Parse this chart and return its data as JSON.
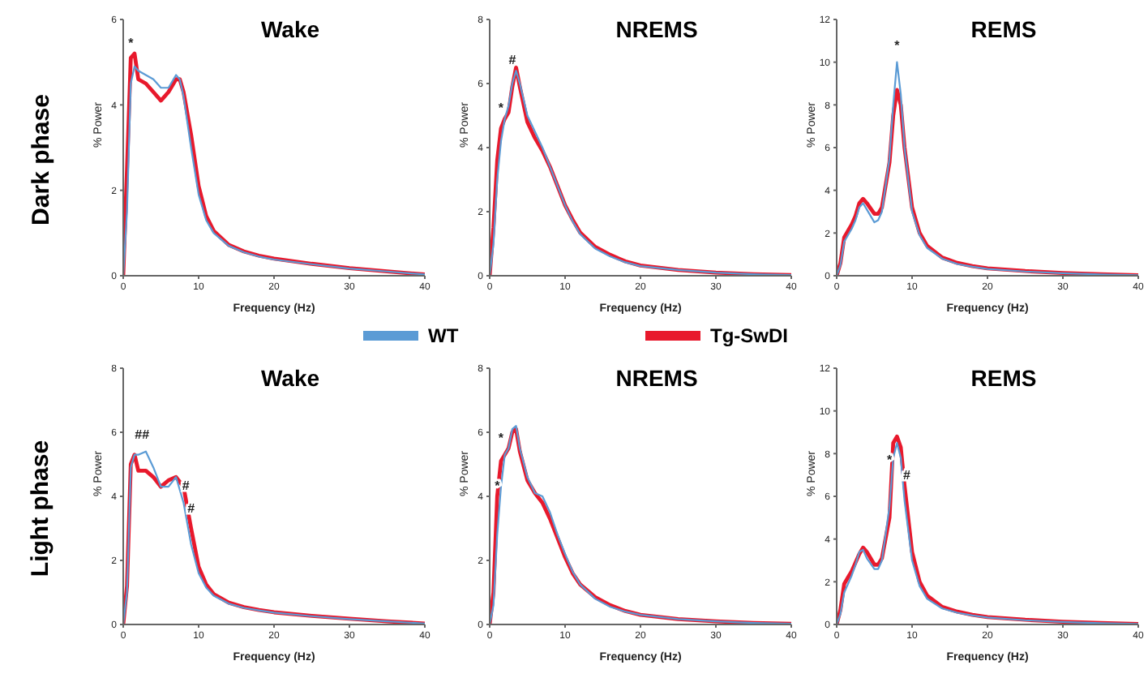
{
  "chart_data": [
    {
      "type": "line",
      "title": "Wake",
      "xlabel": "Frequency (Hz)",
      "ylabel": "% Power",
      "xlim": [
        0,
        40
      ],
      "xticks": [
        0,
        10,
        20,
        30,
        40
      ],
      "ylim": [
        0,
        6
      ],
      "yticks": [
        0,
        2,
        4,
        6
      ],
      "x": [
        0,
        0.5,
        1,
        1.5,
        2,
        3,
        4,
        5,
        6,
        7,
        7.5,
        8,
        9,
        10,
        11,
        12,
        14,
        16,
        18,
        20,
        25,
        30,
        35,
        40
      ],
      "series": [
        {
          "color": "#5b9bd5",
          "values": [
            0,
            1.5,
            4.5,
            4.9,
            4.8,
            4.7,
            4.6,
            4.4,
            4.4,
            4.7,
            4.6,
            4.2,
            3.0,
            1.9,
            1.3,
            1.0,
            0.7,
            0.55,
            0.45,
            0.38,
            0.27,
            0.17,
            0.1,
            0.03
          ]
        },
        {
          "color": "#e8192c",
          "values": [
            0,
            2.5,
            5.1,
            5.2,
            4.6,
            4.5,
            4.3,
            4.1,
            4.3,
            4.6,
            4.6,
            4.3,
            3.3,
            2.1,
            1.4,
            1.05,
            0.72,
            0.57,
            0.47,
            0.4,
            0.28,
            0.18,
            0.1,
            0.03
          ]
        }
      ],
      "annotations": [
        "Dark phase",
        {
          "text": "*",
          "x": 1,
          "y": 5.2
        }
      ]
    },
    {
      "type": "line",
      "title": "NREMS",
      "xlabel": "Frequency (Hz)",
      "ylabel": "% Power",
      "xlim": [
        0,
        40
      ],
      "xticks": [
        0,
        10,
        20,
        30,
        40
      ],
      "ylim": [
        0,
        8
      ],
      "yticks": [
        0,
        2,
        4,
        6,
        8
      ],
      "legend": "bottom",
      "x": [
        0,
        0.5,
        1,
        1.5,
        2,
        2.5,
        3,
        3.5,
        4,
        5,
        6,
        7,
        8,
        9,
        10,
        11,
        12,
        14,
        16,
        18,
        20,
        25,
        30,
        35,
        40
      ],
      "series": [
        {
          "name": "WT",
          "color": "#5b9bd5",
          "values": [
            0,
            1.0,
            3.0,
            4.2,
            4.9,
            5.3,
            6.0,
            6.4,
            6.0,
            5.0,
            4.5,
            4.0,
            3.4,
            2.8,
            2.2,
            1.7,
            1.3,
            0.85,
            0.6,
            0.42,
            0.3,
            0.18,
            0.1,
            0.05,
            0.02
          ]
        },
        {
          "name": "Tg-SwDI",
          "color": "#e8192c",
          "values": [
            0,
            1.5,
            3.6,
            4.6,
            4.9,
            5.1,
            5.9,
            6.5,
            5.9,
            4.8,
            4.3,
            3.9,
            3.4,
            2.8,
            2.2,
            1.75,
            1.35,
            0.9,
            0.65,
            0.45,
            0.32,
            0.18,
            0.1,
            0.05,
            0.02
          ]
        }
      ],
      "annotations": [
        {
          "text": "*",
          "x": 1.5,
          "y": 4.9
        },
        {
          "text": "#",
          "x": 3,
          "y": 6.4
        }
      ]
    },
    {
      "type": "line",
      "title": "REMS",
      "xlabel": "Frequency (Hz)",
      "ylabel": "% Power",
      "xlim": [
        0,
        40
      ],
      "xticks": [
        0,
        10,
        20,
        30,
        40
      ],
      "ylim": [
        0,
        12
      ],
      "yticks": [
        0,
        2,
        4,
        6,
        8,
        10,
        12
      ],
      "x": [
        0,
        0.5,
        1,
        1.5,
        2,
        2.5,
        3,
        3.5,
        4,
        5,
        5.5,
        6,
        7,
        7.5,
        8,
        8.5,
        9,
        10,
        11,
        12,
        14,
        16,
        18,
        20,
        25,
        30,
        35,
        40
      ],
      "series": [
        {
          "color": "#5b9bd5",
          "values": [
            0,
            0.5,
            1.6,
            1.9,
            2.2,
            2.6,
            3.2,
            3.4,
            3.1,
            2.5,
            2.6,
            3.0,
            5.5,
            8.0,
            10.0,
            8.5,
            6.0,
            3.0,
            1.9,
            1.3,
            0.8,
            0.55,
            0.42,
            0.32,
            0.2,
            0.12,
            0.06,
            0.02
          ]
        },
        {
          "color": "#e8192c",
          "values": [
            0,
            0.6,
            1.8,
            2.1,
            2.4,
            2.8,
            3.4,
            3.6,
            3.4,
            2.9,
            2.9,
            3.2,
            5.3,
            7.5,
            8.7,
            8.0,
            6.0,
            3.2,
            2.0,
            1.4,
            0.85,
            0.6,
            0.45,
            0.35,
            0.22,
            0.13,
            0.07,
            0.02
          ]
        }
      ],
      "annotations": [
        {
          "text": "*",
          "x": 8,
          "y": 10.3
        }
      ]
    },
    {
      "type": "line",
      "title": "Wake",
      "xlabel": "Frequency (Hz)",
      "ylabel": "% Power",
      "xlim": [
        0,
        40
      ],
      "xticks": [
        0,
        10,
        20,
        30,
        40
      ],
      "ylim": [
        0,
        8
      ],
      "yticks": [
        0,
        2,
        4,
        6,
        8
      ],
      "x": [
        0,
        0.5,
        1,
        1.5,
        2,
        3,
        4,
        5,
        6,
        7,
        8,
        9,
        10,
        11,
        12,
        14,
        16,
        18,
        20,
        25,
        30,
        35,
        40
      ],
      "series": [
        {
          "color": "#5b9bd5",
          "values": [
            0,
            1.0,
            4.9,
            5.3,
            5.3,
            5.4,
            4.9,
            4.3,
            4.3,
            4.6,
            3.8,
            2.5,
            1.6,
            1.15,
            0.9,
            0.65,
            0.52,
            0.44,
            0.37,
            0.26,
            0.17,
            0.1,
            0.03
          ]
        },
        {
          "color": "#e8192c",
          "values": [
            0,
            1.2,
            5.0,
            5.3,
            4.8,
            4.8,
            4.6,
            4.3,
            4.5,
            4.6,
            4.3,
            3.0,
            1.8,
            1.25,
            0.95,
            0.68,
            0.54,
            0.45,
            0.38,
            0.27,
            0.18,
            0.1,
            0.03
          ]
        }
      ],
      "annotations": [
        "Light phase",
        {
          "text": "##",
          "x": 2.5,
          "y": 5.6
        },
        {
          "text": "#",
          "x": 8.3,
          "y": 4.0
        },
        {
          "text": "#",
          "x": 9,
          "y": 3.3
        }
      ]
    },
    {
      "type": "line",
      "title": "NREMS",
      "xlabel": "Frequency (Hz)",
      "ylabel": "% Power",
      "xlim": [
        0,
        40
      ],
      "xticks": [
        0,
        10,
        20,
        30,
        40
      ],
      "ylim": [
        0,
        8
      ],
      "yticks": [
        0,
        2,
        4,
        6,
        8
      ],
      "x": [
        0,
        0.5,
        1,
        1.5,
        2,
        2.5,
        3,
        3.5,
        4,
        5,
        6,
        7,
        8,
        9,
        10,
        11,
        12,
        14,
        16,
        18,
        20,
        25,
        30,
        35,
        40
      ],
      "series": [
        {
          "color": "#5b9bd5",
          "values": [
            0,
            0.6,
            2.8,
            4.3,
            5.3,
            5.5,
            6.1,
            6.2,
            5.5,
            4.6,
            4.1,
            4.0,
            3.5,
            2.8,
            2.2,
            1.65,
            1.25,
            0.8,
            0.55,
            0.4,
            0.3,
            0.17,
            0.1,
            0.05,
            0.02
          ]
        },
        {
          "color": "#e8192c",
          "values": [
            0,
            1.0,
            4.0,
            5.1,
            5.3,
            5.5,
            6.0,
            6.1,
            5.4,
            4.5,
            4.1,
            3.8,
            3.3,
            2.7,
            2.1,
            1.6,
            1.25,
            0.85,
            0.6,
            0.42,
            0.3,
            0.17,
            0.1,
            0.05,
            0.02
          ]
        }
      ],
      "annotations": [
        {
          "text": "*",
          "x": 1,
          "y": 4.0
        },
        {
          "text": "*",
          "x": 1.5,
          "y": 5.5
        }
      ]
    },
    {
      "type": "line",
      "title": "REMS",
      "xlabel": "Frequency (Hz)",
      "ylabel": "% Power",
      "xlim": [
        0,
        40
      ],
      "xticks": [
        0,
        10,
        20,
        30,
        40
      ],
      "ylim": [
        0,
        12
      ],
      "yticks": [
        0,
        2,
        4,
        6,
        8,
        10,
        12
      ],
      "x": [
        0,
        0.5,
        1,
        1.5,
        2,
        2.5,
        3,
        3.5,
        4,
        5,
        5.5,
        6,
        7,
        7.5,
        8,
        8.5,
        9,
        10,
        11,
        12,
        14,
        16,
        18,
        20,
        25,
        30,
        35,
        40
      ],
      "series": [
        {
          "color": "#5b9bd5",
          "values": [
            0,
            0.5,
            1.5,
            1.9,
            2.3,
            2.8,
            3.4,
            3.5,
            3.1,
            2.6,
            2.6,
            3.0,
            5.5,
            7.8,
            8.5,
            7.8,
            5.8,
            3.0,
            1.8,
            1.2,
            0.75,
            0.55,
            0.42,
            0.33,
            0.2,
            0.12,
            0.06,
            0.02
          ]
        },
        {
          "color": "#e8192c",
          "values": [
            0,
            0.7,
            1.9,
            2.2,
            2.5,
            2.9,
            3.3,
            3.6,
            3.4,
            2.8,
            2.8,
            3.1,
            5.0,
            8.5,
            8.8,
            8.3,
            6.5,
            3.4,
            2.0,
            1.35,
            0.82,
            0.6,
            0.45,
            0.35,
            0.22,
            0.13,
            0.07,
            0.02
          ]
        }
      ],
      "annotations": [
        {
          "text": "*",
          "x": 7,
          "y": 7.2
        },
        {
          "text": "#",
          "x": 9.3,
          "y": 6.5
        }
      ]
    }
  ]
}
